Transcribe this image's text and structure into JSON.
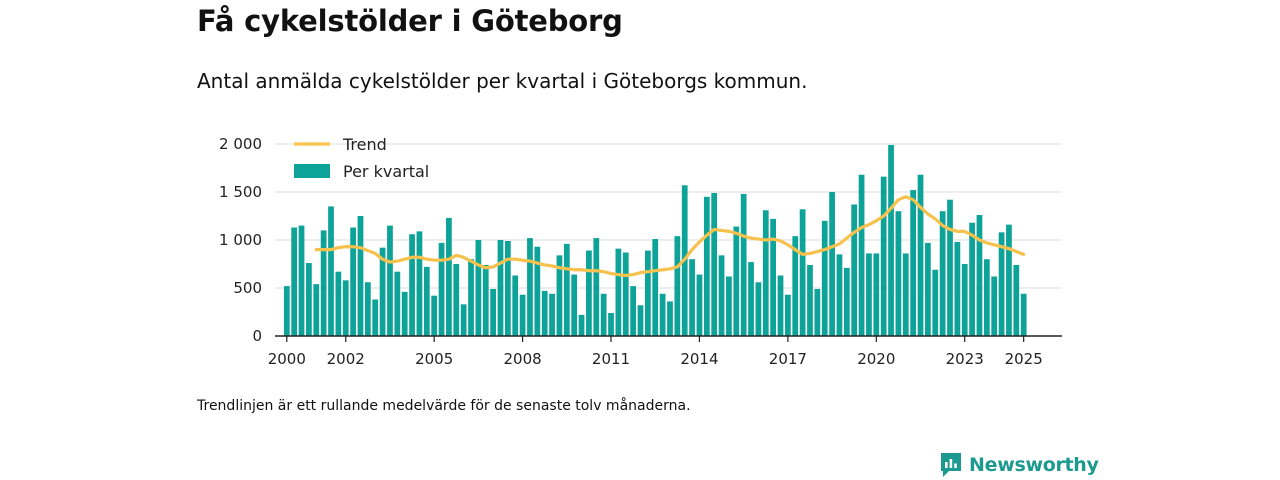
{
  "header": {
    "title": "Få cykelstölder i Göteborg",
    "subtitle": "Antal anmälda cykelstölder per kvartal i Göteborgs kommun."
  },
  "footnote": "Trendlinjen är ett rullande medelvärde för de senaste tolv månaderna.",
  "brand": {
    "name": "Newsworthy"
  },
  "colors": {
    "bar": "#0ea399",
    "trend": "#f6c14c",
    "grid": "#dedede",
    "axis": "#222222",
    "brand": "#1d9a8f"
  },
  "chart_data": {
    "type": "bar",
    "title": "Få cykelstölder i Göteborg",
    "subtitle": "Antal anmälda cykelstölder per kvartal i Göteborgs kommun.",
    "ylim": [
      0,
      2000
    ],
    "yticks": [
      0,
      500,
      1000,
      1500,
      2000
    ],
    "ytick_labels": [
      "0",
      "500",
      "1 000",
      "1 500",
      "2 000"
    ],
    "xticks": [
      2000,
      2002,
      2005,
      2008,
      2011,
      2014,
      2017,
      2020,
      2023,
      2025
    ],
    "xlim": [
      1999.6,
      2026.3
    ],
    "grid": true,
    "legend": {
      "position": "top-left",
      "entries": [
        {
          "name": "Trend",
          "kind": "line"
        },
        {
          "name": "Per kvartal",
          "kind": "bar"
        }
      ]
    },
    "series": [
      {
        "name": "Per kvartal",
        "kind": "bar",
        "start": 2000,
        "step": 0.25,
        "values": [
          520,
          1130,
          1150,
          760,
          540,
          1100,
          1350,
          670,
          580,
          1130,
          1250,
          560,
          380,
          920,
          1150,
          670,
          460,
          1060,
          1090,
          720,
          420,
          970,
          1230,
          750,
          330,
          800,
          1000,
          740,
          490,
          1000,
          990,
          630,
          430,
          1020,
          930,
          470,
          440,
          840,
          960,
          640,
          220,
          890,
          1020,
          440,
          240,
          910,
          870,
          520,
          320,
          890,
          1010,
          440,
          360,
          1040,
          1570,
          800,
          640,
          1450,
          1490,
          840,
          620,
          1140,
          1480,
          770,
          560,
          1310,
          1220,
          630,
          430,
          1040,
          1320,
          740,
          490,
          1200,
          1500,
          850,
          710,
          1370,
          1680,
          860,
          860,
          1660,
          1990,
          1300,
          860,
          1520,
          1680,
          970,
          690,
          1300,
          1420,
          980,
          750,
          1180,
          1260,
          800,
          620,
          1080,
          1160,
          740,
          440
        ]
      },
      {
        "name": "Trend",
        "kind": "line",
        "points": [
          [
            2001.0,
            900
          ],
          [
            2001.25,
            900
          ],
          [
            2001.5,
            900
          ],
          [
            2001.75,
            920
          ],
          [
            2002.0,
            930
          ],
          [
            2002.25,
            930
          ],
          [
            2002.5,
            920
          ],
          [
            2002.75,
            890
          ],
          [
            2003.0,
            860
          ],
          [
            2003.25,
            800
          ],
          [
            2003.5,
            770
          ],
          [
            2003.75,
            780
          ],
          [
            2004.0,
            800
          ],
          [
            2004.25,
            820
          ],
          [
            2004.5,
            820
          ],
          [
            2004.75,
            800
          ],
          [
            2005.0,
            790
          ],
          [
            2005.25,
            790
          ],
          [
            2005.5,
            800
          ],
          [
            2005.75,
            840
          ],
          [
            2006.0,
            820
          ],
          [
            2006.25,
            780
          ],
          [
            2006.5,
            740
          ],
          [
            2006.75,
            710
          ],
          [
            2007.0,
            720
          ],
          [
            2007.25,
            760
          ],
          [
            2007.5,
            800
          ],
          [
            2007.75,
            800
          ],
          [
            2008.0,
            790
          ],
          [
            2008.25,
            780
          ],
          [
            2008.5,
            760
          ],
          [
            2008.75,
            740
          ],
          [
            2009.0,
            730
          ],
          [
            2009.25,
            710
          ],
          [
            2009.5,
            700
          ],
          [
            2009.75,
            690
          ],
          [
            2010.0,
            690
          ],
          [
            2010.25,
            680
          ],
          [
            2010.5,
            680
          ],
          [
            2010.75,
            670
          ],
          [
            2011.0,
            650
          ],
          [
            2011.25,
            640
          ],
          [
            2011.5,
            630
          ],
          [
            2011.75,
            640
          ],
          [
            2012.0,
            660
          ],
          [
            2012.25,
            670
          ],
          [
            2012.5,
            680
          ],
          [
            2012.75,
            690
          ],
          [
            2013.0,
            700
          ],
          [
            2013.25,
            720
          ],
          [
            2013.5,
            800
          ],
          [
            2013.75,
            900
          ],
          [
            2014.0,
            980
          ],
          [
            2014.25,
            1050
          ],
          [
            2014.5,
            1110
          ],
          [
            2014.75,
            1100
          ],
          [
            2015.0,
            1090
          ],
          [
            2015.25,
            1070
          ],
          [
            2015.5,
            1040
          ],
          [
            2015.75,
            1020
          ],
          [
            2016.0,
            1010
          ],
          [
            2016.25,
            1000
          ],
          [
            2016.5,
            1010
          ],
          [
            2016.75,
            990
          ],
          [
            2017.0,
            950
          ],
          [
            2017.25,
            900
          ],
          [
            2017.5,
            850
          ],
          [
            2017.75,
            860
          ],
          [
            2018.0,
            880
          ],
          [
            2018.25,
            900
          ],
          [
            2018.5,
            930
          ],
          [
            2018.75,
            960
          ],
          [
            2019.0,
            1020
          ],
          [
            2019.25,
            1080
          ],
          [
            2019.5,
            1130
          ],
          [
            2019.75,
            1160
          ],
          [
            2020.0,
            1200
          ],
          [
            2020.25,
            1250
          ],
          [
            2020.5,
            1330
          ],
          [
            2020.75,
            1420
          ],
          [
            2021.0,
            1450
          ],
          [
            2021.25,
            1420
          ],
          [
            2021.5,
            1340
          ],
          [
            2021.75,
            1270
          ],
          [
            2022.0,
            1220
          ],
          [
            2022.25,
            1150
          ],
          [
            2022.5,
            1110
          ],
          [
            2022.75,
            1090
          ],
          [
            2023.0,
            1090
          ],
          [
            2023.25,
            1050
          ],
          [
            2023.5,
            1000
          ],
          [
            2023.75,
            970
          ],
          [
            2024.0,
            950
          ],
          [
            2024.25,
            930
          ],
          [
            2024.5,
            910
          ],
          [
            2024.75,
            880
          ],
          [
            2025.0,
            850
          ]
        ]
      }
    ]
  }
}
